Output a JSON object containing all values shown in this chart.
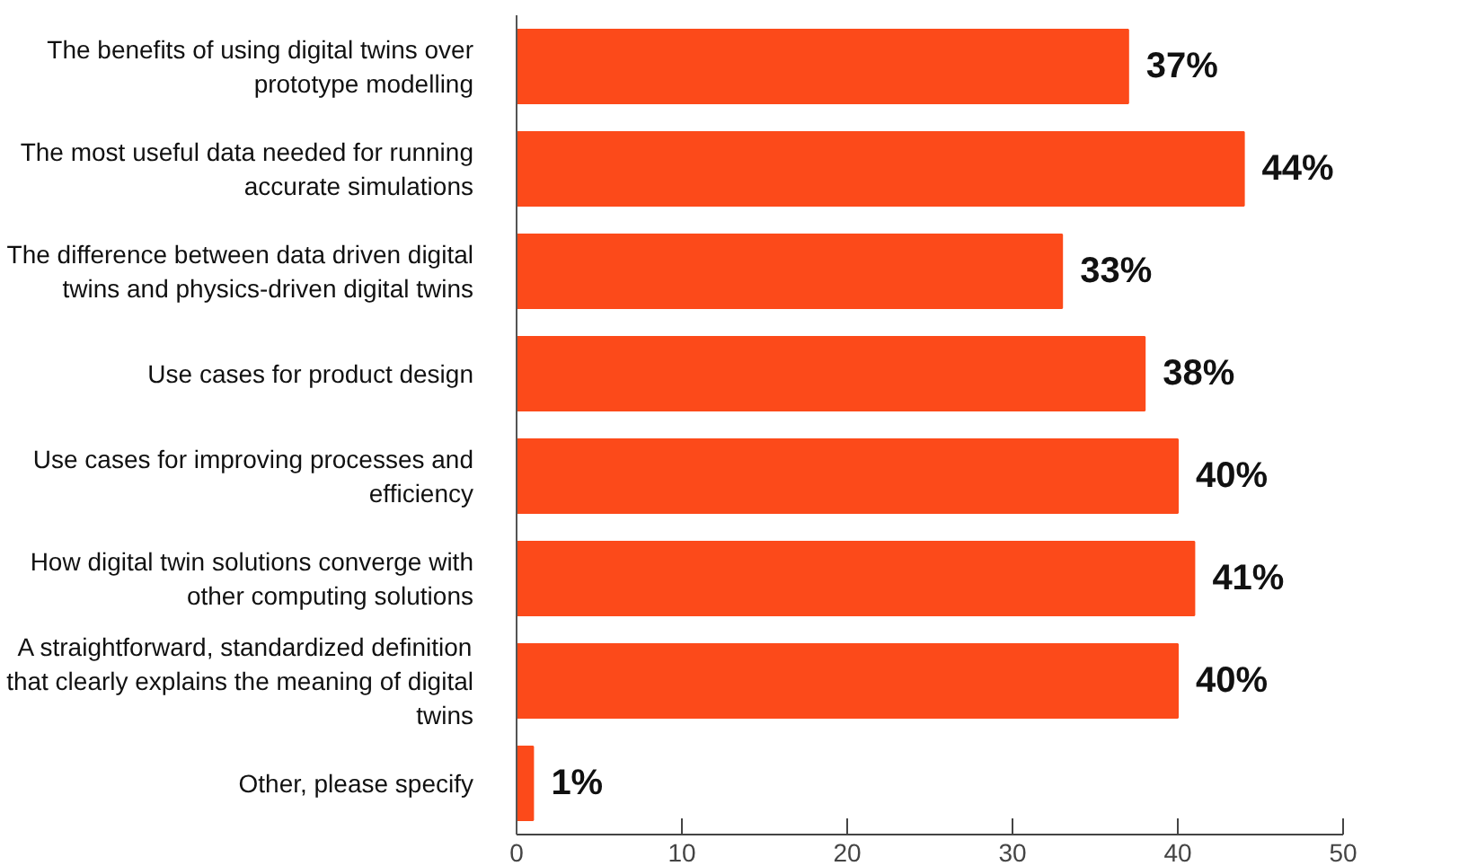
{
  "chart_data": {
    "type": "bar",
    "orientation": "horizontal",
    "categories": [
      "The benefits of using digital twins over prototype modelling",
      "The most useful data needed for running accurate simulations",
      "The difference between data driven digital twins and physics-driven digital twins",
      "Use cases for product design",
      "Use cases for improving processes and efficiency",
      "How digital twin solutions converge with other computing solutions",
      "A straightforward, standardized definition that clearly explains the meaning of digital twins",
      "Other, please specify"
    ],
    "values": [
      37,
      44,
      33,
      38,
      40,
      41,
      40,
      1
    ],
    "value_labels": [
      "37%",
      "44%",
      "33%",
      "38%",
      "40%",
      "41%",
      "40%",
      "1%"
    ],
    "color": "#fc4a1a",
    "xlim": [
      0,
      50
    ],
    "xticks": [
      0,
      10,
      20,
      30,
      40,
      50
    ],
    "grid": false
  }
}
